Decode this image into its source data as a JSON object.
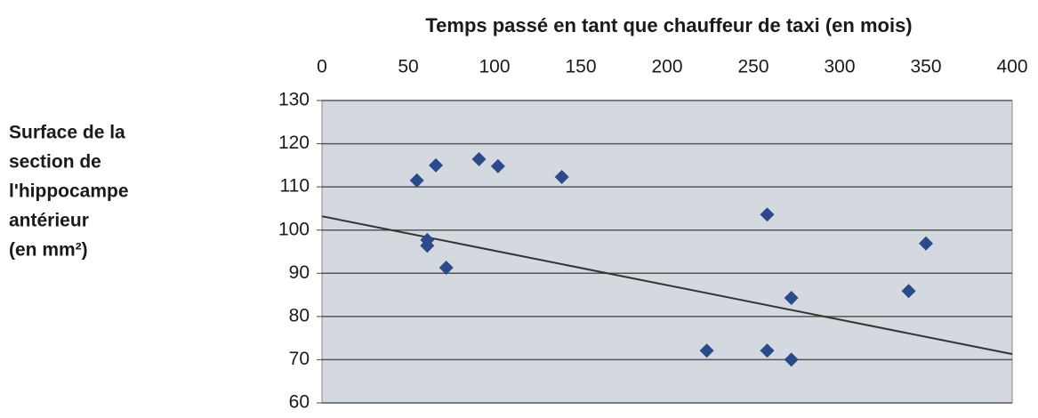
{
  "chart_data": {
    "type": "scatter",
    "x_label": "Temps passé en tant que chauffeur de taxi (en mois)",
    "y_label": [
      "Surface de la",
      "section de",
      "l'hippocampe",
      "antérieur",
      "(en mm²)"
    ],
    "series": [
      {
        "color": "#2b4a8b",
        "x": [
          55,
          66,
          91,
          102,
          139,
          61,
          61,
          72,
          258,
          223,
          258,
          272,
          272,
          340,
          350
        ],
        "values": [
          111.5,
          115,
          116.4,
          114.8,
          112.3,
          97.7,
          96.4,
          91.3,
          103.6,
          72.1,
          72.1,
          70,
          84.3,
          85.9,
          96.9
        ]
      }
    ],
    "trendline": {
      "color": "#333333",
      "x": [
        0,
        400
      ],
      "values": [
        103.2,
        71.3
      ]
    },
    "xlim": [
      0,
      400
    ],
    "xticks": [
      0,
      50,
      100,
      150,
      200,
      250,
      300,
      350,
      400
    ],
    "ylim": [
      60,
      130
    ],
    "yticks": [
      60,
      70,
      80,
      90,
      100,
      110,
      120,
      130
    ],
    "grid": true
  }
}
